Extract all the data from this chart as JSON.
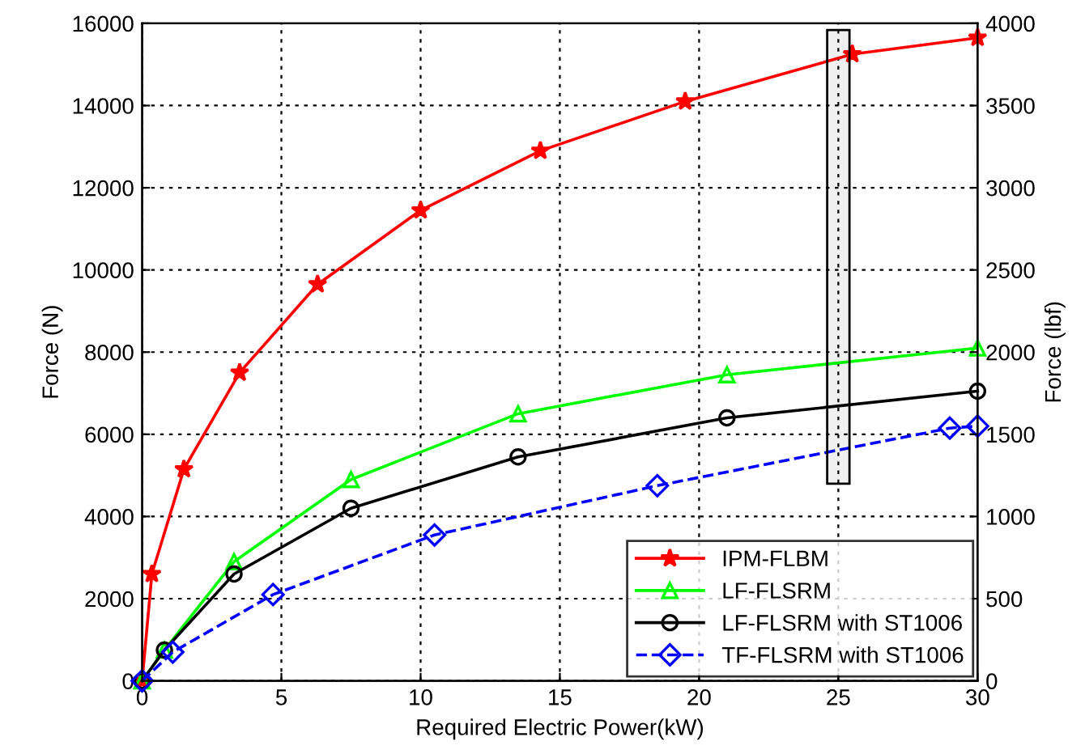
{
  "chart_data": {
    "type": "line",
    "xlabel": "Required Electric Power(kW)",
    "ylabel": "Force (N)",
    "y2label": "Force (lbf)",
    "xlim": [
      0,
      30
    ],
    "xticks": [
      0,
      5,
      10,
      15,
      20,
      25,
      30
    ],
    "ylim": [
      0,
      16000
    ],
    "yticks": [
      0,
      2000,
      4000,
      6000,
      8000,
      10000,
      12000,
      14000,
      16000
    ],
    "y2lim": [
      0,
      4000
    ],
    "y2ticks": [
      0,
      500,
      1000,
      1500,
      2000,
      2500,
      3000,
      3500,
      4000
    ],
    "grid": true,
    "legend": "bottom right",
    "bands": [
      {
        "axis": "x",
        "from": 24.6,
        "to": 25.4,
        "color": "#000000"
      }
    ],
    "series": [
      {
        "name": "IPM-FLBM",
        "color": "#ff0000",
        "marker": "star",
        "line_style": "solid",
        "x": [
          0,
          0.35,
          1.5,
          3.5,
          6.3,
          10,
          14.3,
          19.5,
          25.5,
          30
        ],
        "values": [
          0,
          2600,
          5150,
          7500,
          9650,
          11450,
          12900,
          14100,
          15250,
          15650
        ]
      },
      {
        "name": "LF-FLSRM",
        "color": "#00ff00",
        "marker": "triangle",
        "line_style": "solid",
        "x": [
          0,
          0.8,
          3.3,
          7.5,
          13.5,
          21,
          30
        ],
        "values": [
          0,
          750,
          2900,
          4900,
          6500,
          7450,
          8100
        ]
      },
      {
        "name": "LF-FLSRM with ST1006",
        "color": "#000000",
        "marker": "circle",
        "line_style": "solid",
        "x": [
          0,
          0.8,
          3.3,
          7.5,
          13.5,
          21,
          30
        ],
        "values": [
          0,
          750,
          2600,
          4200,
          5450,
          6400,
          7050
        ]
      },
      {
        "name": "TF-FLSRM with ST1006",
        "color": "#0000ff",
        "marker": "diamond",
        "line_style": "dashed",
        "x": [
          0,
          1.1,
          4.7,
          10.5,
          18.5,
          29,
          30
        ],
        "values": [
          0,
          700,
          2100,
          3550,
          4750,
          6150,
          6200
        ]
      }
    ]
  }
}
